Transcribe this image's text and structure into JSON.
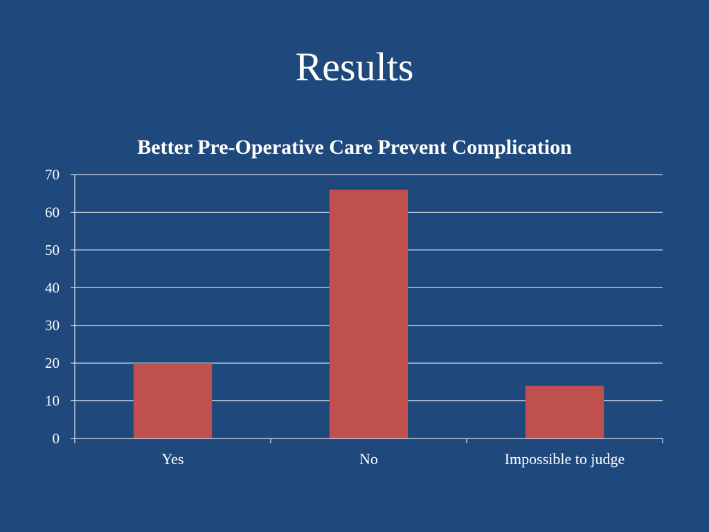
{
  "slide": {
    "title": "Results"
  },
  "colors": {
    "background": "#1f497d",
    "bar": "#c0504d",
    "gridline": "#ffffff",
    "text": "#ffffff"
  },
  "chart_data": {
    "type": "bar",
    "title": "Better Pre-Operative Care Prevent Complication",
    "xlabel": "",
    "ylabel": "",
    "categories": [
      "Yes",
      "No",
      "Impossible to judge"
    ],
    "values": [
      20,
      66,
      14
    ],
    "ylim": [
      0,
      70
    ],
    "yticks": [
      0,
      10,
      20,
      30,
      40,
      50,
      60,
      70
    ],
    "grid": true,
    "legend": "none"
  }
}
